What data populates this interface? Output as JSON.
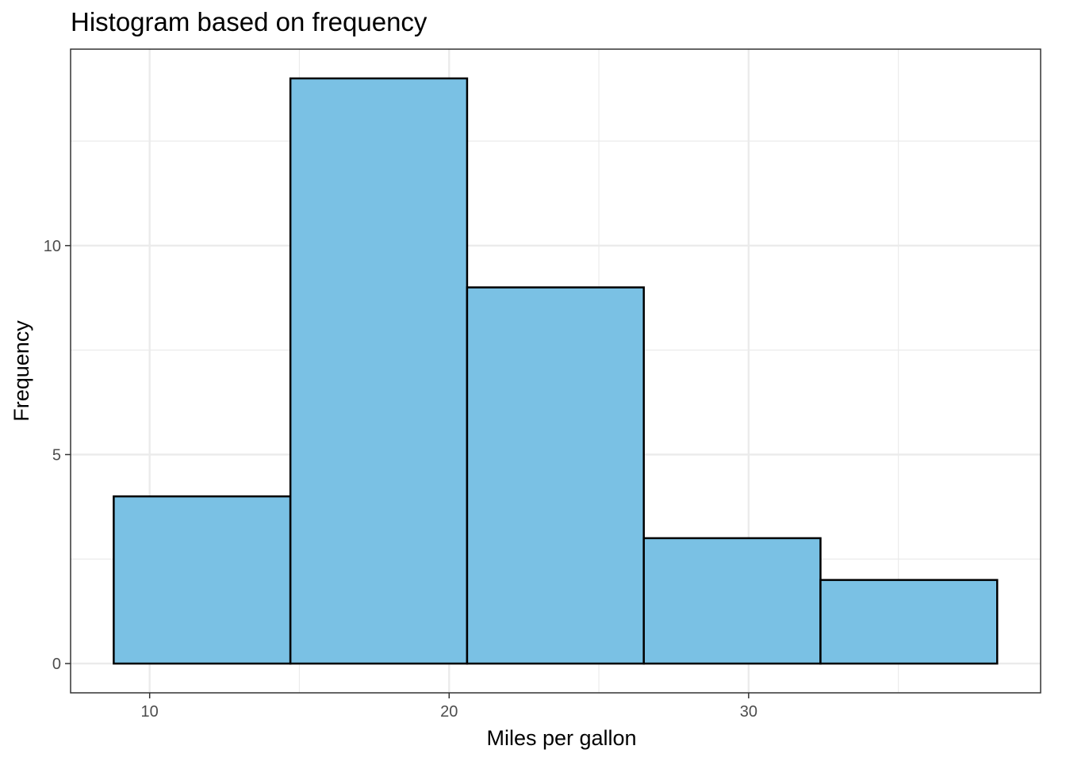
{
  "chart_data": {
    "type": "bar",
    "title": "Histogram based on frequency",
    "xlabel": "Miles per gallon",
    "ylabel": "Frequency",
    "bins": [
      {
        "x0": 8.8,
        "x1": 14.7,
        "count": 4
      },
      {
        "x0": 14.7,
        "x1": 20.6,
        "count": 14
      },
      {
        "x0": 20.6,
        "x1": 26.5,
        "count": 9
      },
      {
        "x0": 26.5,
        "x1": 32.4,
        "count": 3
      },
      {
        "x0": 32.4,
        "x1": 38.3,
        "count": 2
      }
    ],
    "xlim": [
      7.36,
      39.75
    ],
    "ylim": [
      -0.7,
      14.7
    ],
    "x_ticks": [
      10,
      20,
      30
    ],
    "x_tick_labels": [
      "10",
      "20",
      "30"
    ],
    "x_minor_ticks": [
      15,
      25,
      35
    ],
    "y_ticks": [
      0,
      5,
      10
    ],
    "y_tick_labels": [
      "0",
      "5",
      "10"
    ],
    "y_minor_ticks": [
      2.5,
      7.5,
      12.5
    ],
    "grid": true,
    "legend": "none",
    "colors": {
      "bar_fill": "#7AC1E4",
      "bar_stroke": "#000000",
      "grid": "#EBEBEB",
      "panel_border": "#333333",
      "tick_text": "#4D4D4D"
    }
  }
}
